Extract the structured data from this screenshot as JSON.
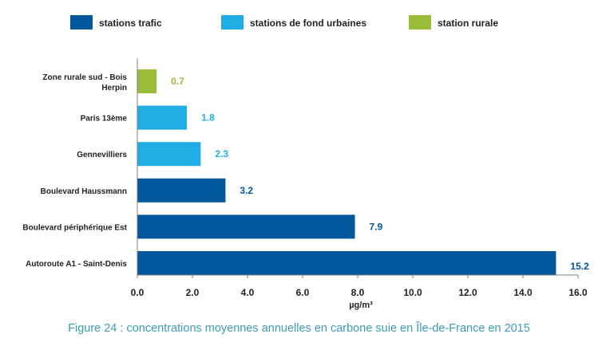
{
  "chart_data": {
    "type": "bar",
    "orientation": "horizontal",
    "title": "",
    "xlabel": "µg/m³",
    "ylabel": "",
    "xlim": [
      0,
      16
    ],
    "xticks": [
      "0.0",
      "2.0",
      "4.0",
      "6.0",
      "8.0",
      "10.0",
      "12.0",
      "14.0",
      "16.0"
    ],
    "grid": false,
    "legend_position": "top",
    "legend": [
      {
        "name": "stations trafic",
        "color": "#00579c"
      },
      {
        "name": "stations  de fond urbaines",
        "color": "#1fade4"
      },
      {
        "name": "station rurale",
        "color": "#9bbb3b"
      }
    ],
    "bars": [
      {
        "category": [
          "Zone rurale sud - Bois",
          "Herpin"
        ],
        "value": 0.7,
        "value_label": "0.7",
        "group": 2
      },
      {
        "category": [
          "Paris 13ème"
        ],
        "value": 1.8,
        "value_label": "1.8",
        "group": 1
      },
      {
        "category": [
          "Gennevilliers"
        ],
        "value": 2.3,
        "value_label": "2.3",
        "group": 1
      },
      {
        "category": [
          "Boulevard Haussmann"
        ],
        "value": 3.2,
        "value_label": "3.2",
        "group": 0
      },
      {
        "category": [
          "Boulevard périphérique Est"
        ],
        "value": 7.9,
        "value_label": "7.9",
        "group": 0
      },
      {
        "category": [
          "Autoroute A1 - Saint-Denis"
        ],
        "value": 15.2,
        "value_label": "15.2",
        "group": 0
      }
    ]
  },
  "caption": "Figure 24 : concentrations moyennes annuelles en carbone suie en Île-de-France en 2015"
}
